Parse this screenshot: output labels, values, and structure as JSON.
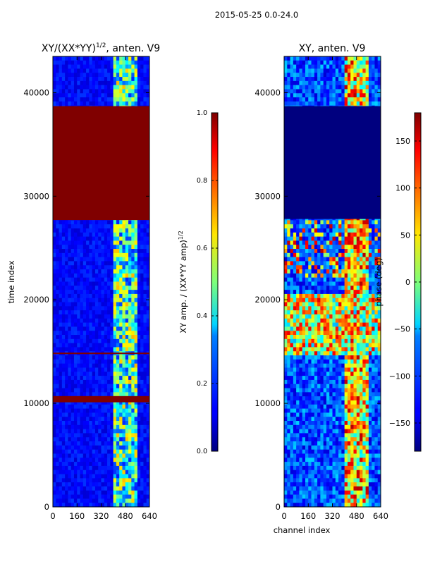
{
  "figure": {
    "suptitle": "2015-05-25 0.0-24.0"
  },
  "chart_data": [
    {
      "type": "heatmap",
      "title": "XY/(XX*YY)^1/2, anten. V9",
      "title_main": "XY/(XX*YY)",
      "title_exp": "1/2",
      "title_tail": ", anten. V9",
      "xlabel": "",
      "ylabel": "time index",
      "xlim": [
        0,
        640
      ],
      "ylim": [
        0,
        43500
      ],
      "xticks": [
        0,
        160,
        320,
        480,
        640
      ],
      "yticks": [
        0,
        10000,
        20000,
        30000,
        40000
      ],
      "colormap": "jet",
      "colorbar": {
        "label": "XY amp. / (XX*YY amp)^1/2",
        "label_main": "XY amp. / (XX*YY amp)",
        "label_exp": "1/2",
        "range": [
          0.0,
          1.0
        ],
        "ticks": [
          "0.0",
          "0.2",
          "0.4",
          "0.6",
          "0.8",
          "1.0"
        ]
      },
      "saturated_time_bands": [
        [
          27700,
          38700
        ],
        [
          10100,
          10700
        ],
        [
          14750,
          14900
        ]
      ],
      "bright_channel_range": [
        400,
        560
      ],
      "description_colors": {
        "low": "#00008f",
        "high": "#800000"
      }
    },
    {
      "type": "heatmap",
      "title": "XY, anten. V9",
      "xlabel": "channel index",
      "ylabel": "",
      "xlim": [
        0,
        640
      ],
      "ylim": [
        0,
        43500
      ],
      "xticks": [
        0,
        160,
        320,
        480,
        640
      ],
      "yticks": [
        0,
        10000,
        20000,
        30000,
        40000
      ],
      "colormap": "jet",
      "colorbar": {
        "label": "phase (deg)",
        "range": [
          -180,
          180
        ],
        "ticks": [
          "150",
          "100",
          "50",
          "0",
          "−50",
          "−100",
          "−150"
        ],
        "tick_values": [
          150,
          100,
          50,
          0,
          -50,
          -100,
          -150
        ]
      },
      "blank_time_band": [
        27800,
        38700
      ],
      "bright_channel_range": [
        400,
        560
      ]
    }
  ]
}
